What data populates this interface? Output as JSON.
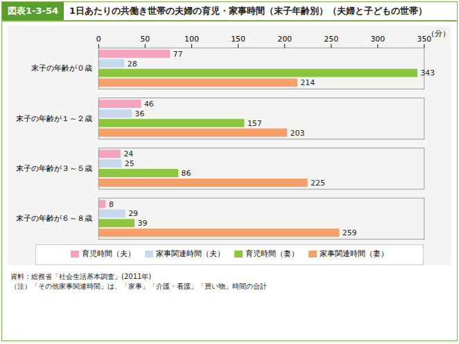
{
  "chart_data": {
    "type": "bar",
    "orientation": "horizontal",
    "badge": "図表1-3-54",
    "title": "1日あたりの共働き世帯の夫婦の育児・家事時間（末子年齢別）（夫婦と子どもの世帯）",
    "categories": [
      "末子の年齢が０歳",
      "末子の年齢が１～２歳",
      "末子の年齢が３～５歳",
      "末子の年齢が６～８歳"
    ],
    "series": [
      {
        "name": "育児時間（夫）",
        "color": "#f4a3bf",
        "values": [
          77,
          46,
          24,
          8
        ]
      },
      {
        "name": "家事関連時間（夫）",
        "color": "#c6d9ef",
        "values": [
          28,
          36,
          25,
          29
        ]
      },
      {
        "name": "育児時間（妻）",
        "color": "#8cc63e",
        "values": [
          343,
          157,
          86,
          39
        ]
      },
      {
        "name": "家事関連時間（妻）",
        "color": "#f5a06a",
        "values": [
          214,
          203,
          225,
          259
        ]
      }
    ],
    "x_label": "（分）",
    "xlim": [
      0,
      350
    ],
    "xticks": [
      0,
      50,
      100,
      150,
      200,
      250,
      300,
      350
    ],
    "grid": false,
    "data_labels": true,
    "legend": "bottom",
    "notes": [
      "資料：総務省「社会生活基本調査」(2011年)",
      "（注）「その他家事関連時間」は、「家事」「介護・看護」「買い物」時間の合計"
    ]
  }
}
